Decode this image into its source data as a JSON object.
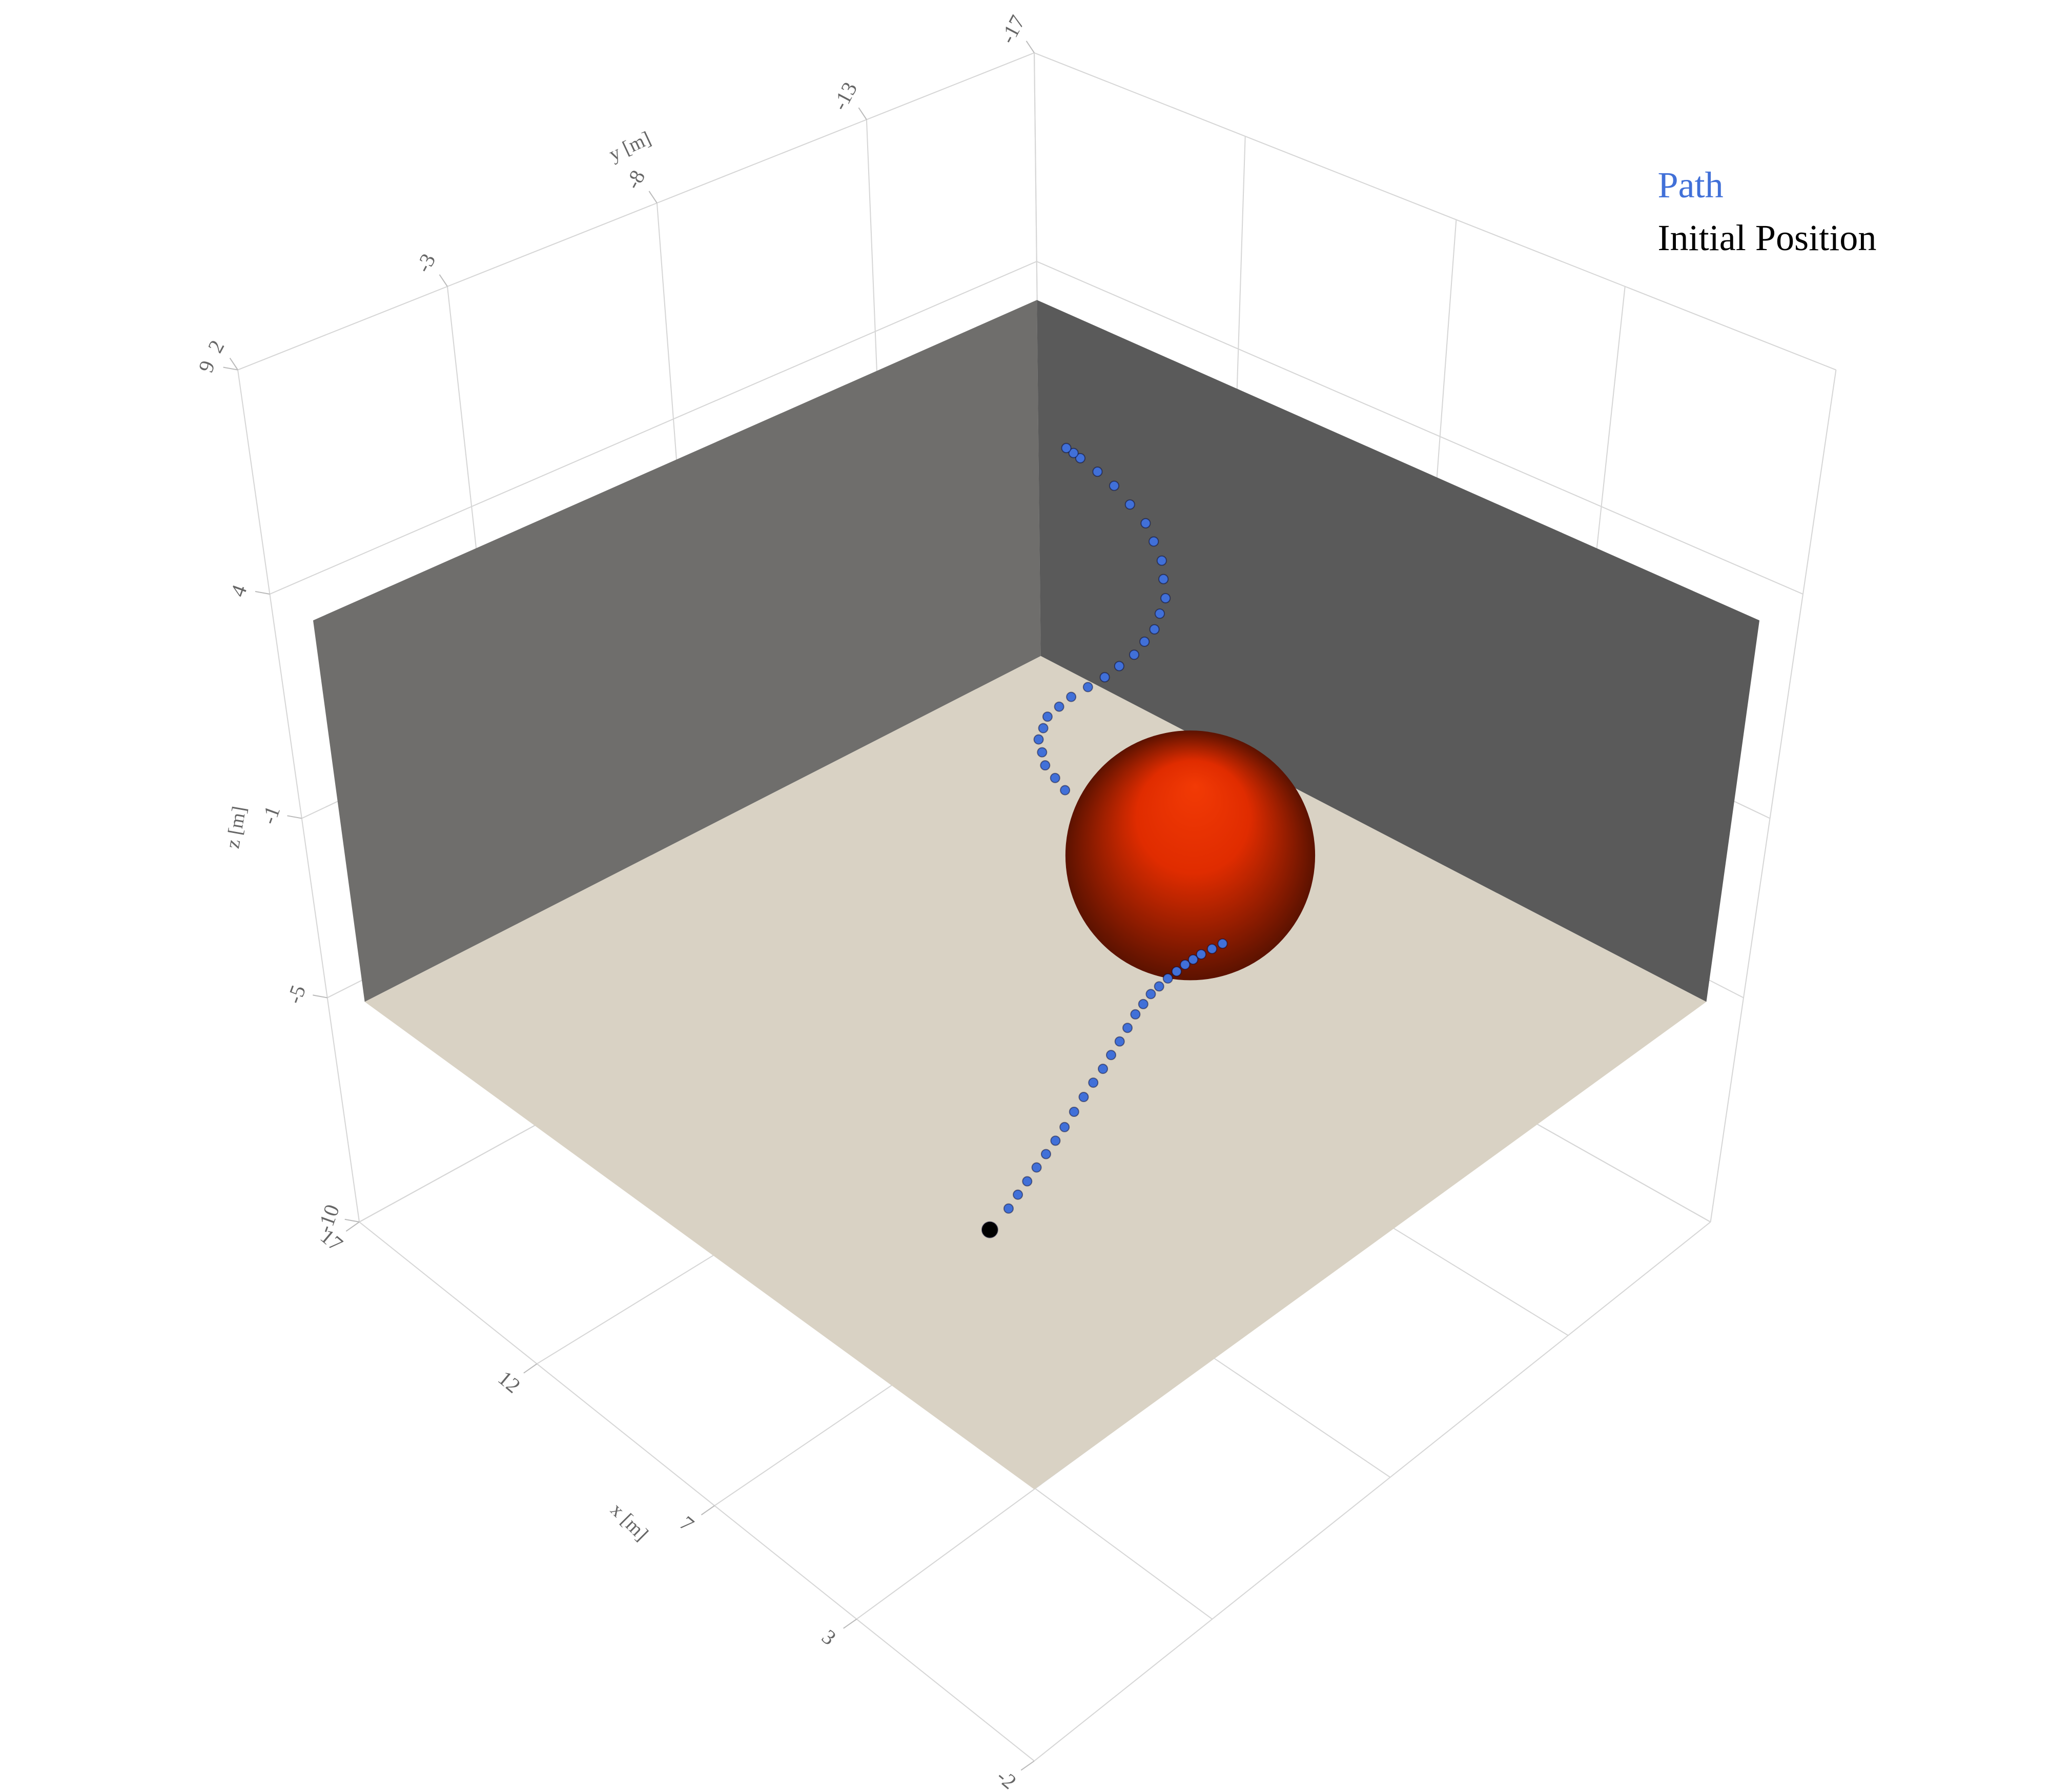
{
  "chart_data": {
    "type": "scatter3d",
    "xaxis_title": "x [m]",
    "yaxis_title": "y [m]",
    "zaxis_title": "z [m]",
    "xlim": [
      -2,
      17
    ],
    "ylim": [
      -17,
      2
    ],
    "zlim": [
      -10,
      9
    ],
    "xticks": [
      -2,
      3,
      7,
      12,
      17
    ],
    "yticks": [
      -17,
      -13,
      -8,
      -3,
      2
    ],
    "zticks": [
      -10,
      -5,
      -1,
      4,
      9
    ],
    "grid": true,
    "legend_position": "top-right",
    "series": [
      {
        "name": "Path",
        "color": "#4170d8",
        "size": 7,
        "x": [
          4.28,
          4.22,
          4.15,
          4.09,
          4.02,
          3.96,
          3.9,
          3.87,
          3.83,
          3.78,
          3.72,
          3.68,
          3.63,
          3.59,
          3.55,
          3.44,
          3.33,
          3.17,
          3.0,
          2.81,
          2.62,
          2.4,
          2.18,
          1.93,
          1.68,
          7.8,
          8.48,
          9.16,
          9.77,
          9.64,
          9.87,
          10.1,
          10.24,
          10.38,
          10.41,
          10.44,
          10.37,
          10.29,
          10.15,
          10.01,
          9.91,
          9.8,
          9.77,
          9.74,
          9.8,
          9.85,
          10.03,
          10.2,
          10.46,
          10.71,
          11.06,
          11.41,
          11.73,
          12.05,
          12.18,
          12.31
        ],
        "y": [
          -3.56,
          -3.75,
          -3.93,
          -4.12,
          -4.3,
          -4.49,
          -4.67,
          -4.89,
          -5.1,
          -5.3,
          -5.49,
          -5.66,
          -5.83,
          -5.99,
          -6.15,
          -6.24,
          -6.32,
          -6.37,
          -6.42,
          -6.45,
          -6.47,
          -6.45,
          -6.43,
          -6.45,
          -6.46,
          -11.7,
          -11.52,
          -11.33,
          -11.18,
          -10.37,
          -10.34,
          -10.31,
          -10.37,
          -10.42,
          -10.57,
          -10.71,
          -10.94,
          -11.17,
          -11.46,
          -11.75,
          -12.02,
          -12.29,
          -12.52,
          -12.74,
          -12.93,
          -13.12,
          -13.24,
          -13.36,
          -13.41,
          -13.45,
          -13.4,
          -13.35,
          -13.25,
          -13.14,
          -13.1,
          -13.05
        ],
        "z": [
          -5,
          -4.77,
          -4.54,
          -4.31,
          -4.08,
          -3.86,
          -3.63,
          -3.4,
          -3.17,
          -2.94,
          -2.71,
          -2.48,
          -2.25,
          -2.02,
          -1.79,
          -1.56,
          -1.33,
          -1.11,
          -0.88,
          -0.65,
          -0.42,
          -0.19,
          0.04,
          0.27,
          0.5,
          -4.51,
          -4.01,
          -3.5,
          -3.04,
          -1.97,
          -1.79,
          -1.6,
          -1.4,
          -1.2,
          -1.03,
          -0.85,
          -0.7,
          -0.55,
          -0.4,
          -0.25,
          -0.08,
          0.1,
          0.3,
          0.49,
          0.73,
          0.97,
          1.27,
          1.56,
          1.86,
          2.15,
          2.45,
          2.75,
          2.98,
          3.2,
          3.28,
          3.36
        ]
      },
      {
        "name": "Initial Position",
        "color": "#000000",
        "size": 12,
        "x": [
          4.1
        ],
        "y": [
          -2.88
        ],
        "z": [
          -5
        ]
      }
    ],
    "obstacle": {
      "center": [
        6,
        -10,
        -1.5
      ],
      "radius": 2.8,
      "color": "#e02c00"
    },
    "room": {
      "x": [
        -1.5,
        16.5
      ],
      "y": [
        -16.5,
        1.5
      ],
      "z": [
        -5,
        3.5
      ],
      "floor_color": "#d9d2c4",
      "wall_colors": [
        "#6f6e6c",
        "#5a5a5a"
      ]
    }
  }
}
